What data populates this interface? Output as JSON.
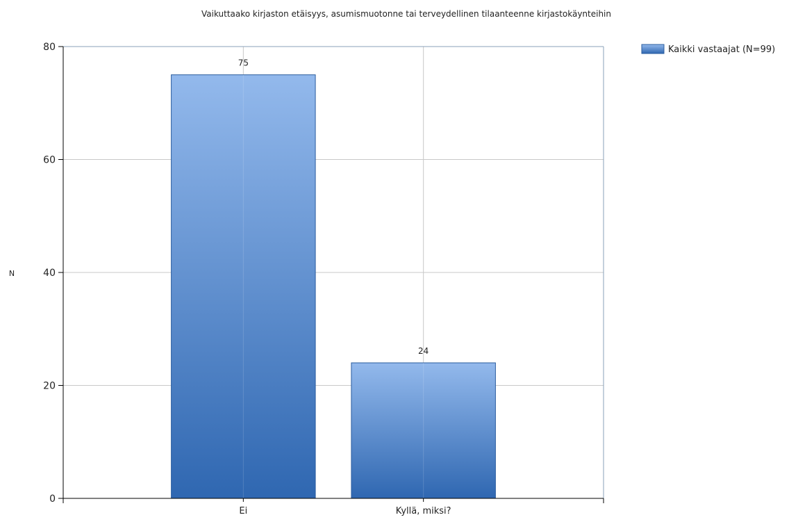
{
  "chart_data": {
    "type": "bar",
    "title": "Vaikuttaako kirjaston etäisyys, asumismuotonne tai terveydellinen tilaanteenne kirjastokäynteihin",
    "xlabel": "",
    "ylabel": "N",
    "ylim": [
      0,
      80
    ],
    "yticks": [
      0,
      20,
      40,
      60,
      80
    ],
    "categories": [
      "Ei",
      "Kyllä, miksi?"
    ],
    "series": [
      {
        "name": "Kaikki vastaajat (N=99)",
        "values": [
          75,
          24
        ]
      }
    ],
    "data_labels": [
      "75",
      "24"
    ],
    "grid": true,
    "legend_position": "top-right",
    "colors": {
      "bar_top": "#93b9ec",
      "bar_bottom": "#2f67b1",
      "bar_stroke": "#2a5c9e",
      "grid": "#c8c8c8",
      "axis": "#000000",
      "plot_border": "#8aa0b8"
    }
  }
}
